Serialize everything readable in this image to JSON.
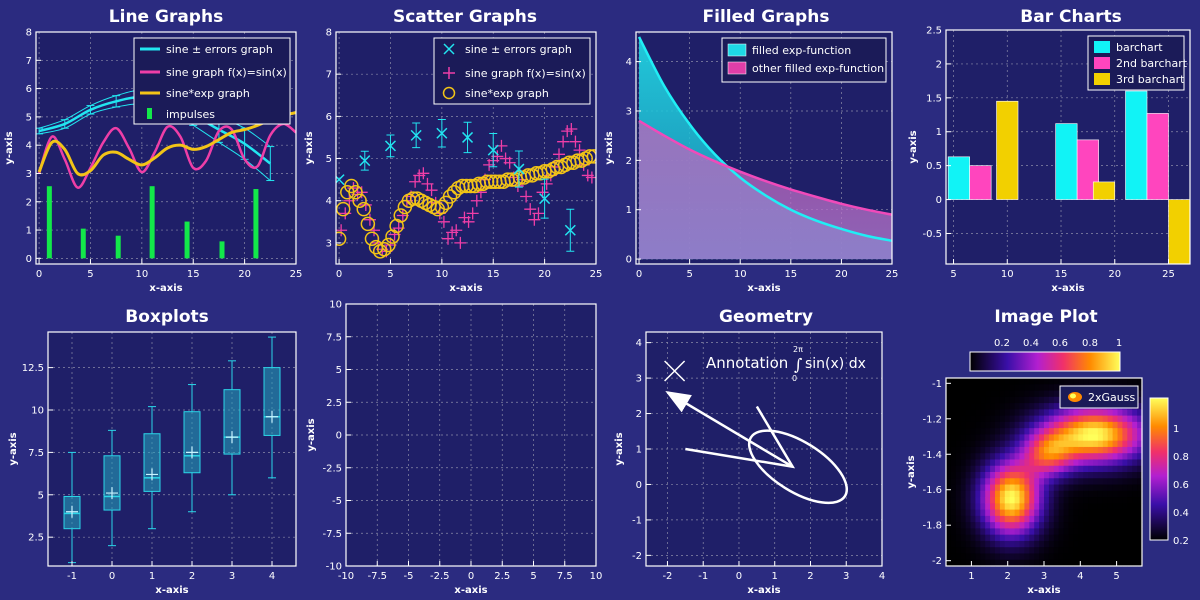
{
  "chart_data": [
    {
      "id": "line",
      "type": "line",
      "title": "Line Graphs",
      "xlabel": "x-axis",
      "ylabel": "y-axis",
      "xlim": [
        -0.3,
        25
      ],
      "ylim": [
        -0.2,
        8
      ],
      "xticks": [
        0,
        5,
        10,
        15,
        20,
        25
      ],
      "yticks": [
        0,
        1,
        2,
        3,
        4,
        5,
        6,
        7,
        8
      ],
      "grid": true,
      "legend_position": "top-right",
      "colors": {
        "errors": "#22e5f0",
        "sine": "#ee3ea7",
        "sineexp": "#f2c417",
        "impulses": "#13e84a"
      },
      "legend": [
        "sine ± errors graph",
        "sine graph f(x)=sin(x)",
        "sine*exp graph",
        "impulses"
      ],
      "series": [
        {
          "name": "sine ± errors graph",
          "x": [
            0,
            2.5,
            5,
            7.5,
            10,
            12.5,
            15,
            17.5,
            20,
            22.5
          ],
          "y": [
            4.5,
            4.75,
            5.25,
            5.55,
            5.7,
            5.5,
            5.05,
            4.55,
            4.05,
            3.35
          ],
          "err": [
            0.1,
            0.15,
            0.15,
            0.2,
            0.25,
            0.3,
            0.35,
            0.45,
            0.55,
            0.6
          ]
        },
        {
          "name": "sine graph f(x)=sin(x)",
          "x": [
            0,
            1.25,
            2.5,
            3.75,
            5,
            6.25,
            7.5,
            8.75,
            10,
            11.25,
            12.5,
            13.75,
            15,
            16.25,
            17.5,
            18.75,
            20,
            21.25,
            22.5,
            23.75,
            25
          ],
          "y": [
            3,
            4.3,
            3.5,
            2.5,
            3.2,
            4.1,
            4.6,
            3.9,
            3.05,
            3.75,
            4.65,
            4.3,
            3.2,
            3.45,
            4.5,
            4.55,
            3.5,
            3.25,
            4.35,
            4.75,
            4.45
          ]
        },
        {
          "name": "sine*exp graph",
          "x": [
            0,
            1.25,
            2.5,
            3.75,
            5,
            6.25,
            7.5,
            8.75,
            10,
            11.25,
            12.5,
            13.75,
            15,
            16.25,
            17.5,
            18.75,
            20,
            21.25,
            22.5,
            23.75,
            25
          ],
          "y": [
            3.05,
            4.1,
            3.85,
            3.0,
            3.1,
            3.65,
            3.75,
            3.5,
            3.3,
            3.55,
            3.9,
            4.0,
            3.85,
            3.95,
            4.2,
            4.45,
            4.55,
            4.7,
            4.9,
            5.05,
            5.15
          ]
        },
        {
          "name": "impulses",
          "x": [
            1,
            4.3,
            7.7,
            11,
            14.4,
            17.8,
            21.1
          ],
          "y": [
            2.55,
            1.05,
            0.8,
            2.55,
            1.3,
            0.6,
            2.45
          ]
        }
      ]
    },
    {
      "id": "scatter",
      "type": "scatter",
      "title": "Scatter Graphs",
      "xlabel": "x-axis",
      "ylabel": "y-axis",
      "xlim": [
        -0.3,
        25
      ],
      "ylim": [
        2.5,
        8
      ],
      "xticks": [
        0,
        5,
        10,
        15,
        20,
        25
      ],
      "yticks": [
        3,
        4,
        5,
        6,
        7,
        8
      ],
      "grid": true,
      "legend_position": "top-right",
      "legend": [
        "sine ± errors graph",
        "sine graph f(x)=sin(x)",
        "sine*exp graph"
      ],
      "series": [
        {
          "name": "sine ± errors graph",
          "marker": "x",
          "x": [
            0,
            2.5,
            5,
            7.5,
            10,
            12.5,
            15,
            17.5,
            20,
            22.5
          ],
          "y": [
            4.5,
            4.95,
            5.3,
            5.55,
            5.6,
            5.5,
            5.2,
            4.75,
            4.05,
            3.3
          ]
        },
        {
          "name": "sine graph f(x)=sin(x)",
          "marker": "+",
          "x": [
            0.2,
            0.6,
            1.0,
            1.4,
            1.8,
            2.2,
            2.6,
            3.0,
            3.4,
            3.8,
            4.2,
            4.6,
            5.0,
            5.4,
            5.8,
            6.2,
            6.6,
            7.0,
            7.4,
            7.8,
            8.2,
            8.6,
            9.0,
            9.4,
            9.8,
            10.2,
            10.6,
            11.0,
            11.4,
            11.8,
            12.2,
            12.6,
            13.0,
            13.4,
            13.8,
            14.2,
            14.6,
            15.0,
            15.4,
            15.8,
            16.2,
            16.6,
            17.0,
            17.4,
            17.8,
            18.2,
            18.6,
            19.0,
            19.4,
            19.8,
            20.2,
            20.6,
            21.0,
            21.4,
            21.8,
            22.2,
            22.6,
            23.0,
            23.4,
            23.8,
            24.2,
            24.6
          ],
          "y": [
            3.3,
            3.7,
            4.0,
            4.3,
            4.15,
            4.2,
            3.9,
            3.55,
            3.3,
            3.0,
            2.85,
            2.8,
            2.95,
            3.2,
            3.35,
            3.65,
            4.0,
            4.1,
            4.45,
            4.6,
            4.65,
            4.4,
            4.25,
            3.95,
            3.7,
            3.5,
            3.1,
            3.25,
            3.3,
            3.0,
            3.6,
            3.5,
            3.7,
            4.0,
            4.2,
            4.5,
            4.85,
            4.95,
            5.05,
            5.3,
            5.0,
            4.9,
            4.55,
            4.35,
            4.5,
            4.1,
            3.8,
            3.55,
            3.7,
            4.2,
            4.4,
            4.6,
            4.8,
            5.1,
            5.4,
            5.65,
            5.7,
            5.4,
            5.2,
            4.85,
            4.6,
            4.55
          ]
        },
        {
          "name": "sine*exp graph",
          "marker": "o",
          "x": [
            0,
            0.4,
            0.8,
            1.2,
            1.6,
            2.0,
            2.4,
            2.8,
            3.2,
            3.6,
            4.0,
            4.4,
            4.8,
            5.2,
            5.6,
            6.0,
            6.4,
            6.8,
            7.2,
            7.6,
            8.0,
            8.4,
            8.8,
            9.2,
            9.6,
            10.0,
            10.4,
            10.8,
            11.2,
            11.6,
            12.0,
            12.4,
            12.8,
            13.2,
            13.6,
            14.0,
            14.4,
            14.8,
            15.2,
            15.6,
            16.0,
            16.4,
            16.8,
            17.2,
            17.6,
            18.0,
            18.4,
            18.8,
            19.2,
            19.6,
            20.0,
            20.4,
            20.8,
            21.2,
            21.6,
            22.0,
            22.4,
            22.8,
            23.2,
            23.6,
            24.0,
            24.4,
            24.8
          ],
          "y": [
            3.1,
            3.8,
            4.2,
            4.35,
            4.2,
            4.0,
            3.8,
            3.45,
            3.1,
            2.9,
            2.8,
            2.85,
            2.95,
            3.15,
            3.4,
            3.65,
            3.85,
            4.0,
            4.05,
            4.05,
            4.0,
            3.95,
            3.9,
            3.85,
            3.8,
            3.85,
            3.95,
            4.1,
            4.2,
            4.3,
            4.35,
            4.35,
            4.35,
            4.35,
            4.4,
            4.4,
            4.45,
            4.45,
            4.45,
            4.45,
            4.45,
            4.5,
            4.5,
            4.5,
            4.55,
            4.55,
            4.6,
            4.6,
            4.65,
            4.65,
            4.7,
            4.7,
            4.75,
            4.8,
            4.8,
            4.85,
            4.9,
            4.9,
            4.95,
            4.95,
            5.0,
            5.05,
            5.05
          ]
        }
      ]
    },
    {
      "id": "filled",
      "type": "area",
      "title": "Filled Graphs",
      "xlabel": "x-axis",
      "ylabel": "y-axis",
      "xlim": [
        -0.3,
        25
      ],
      "ylim": [
        -0.1,
        4.6
      ],
      "xticks": [
        0,
        5,
        10,
        15,
        20,
        25
      ],
      "yticks": [
        0,
        1,
        2,
        3,
        4
      ],
      "grid": true,
      "legend_position": "top-right",
      "legend": [
        "filled exp-function",
        "other filled exp-function"
      ],
      "series": [
        {
          "name": "filled exp-function",
          "color": "#1ed8e6",
          "x": [
            0,
            2.5,
            5,
            7.5,
            10,
            12.5,
            15,
            17.5,
            20,
            22.5,
            25
          ],
          "y": [
            4.5,
            3.5,
            2.73,
            2.12,
            1.65,
            1.29,
            1.0,
            0.78,
            0.61,
            0.47,
            0.37
          ]
        },
        {
          "name": "other filled exp-function",
          "color": "#e03ea8",
          "x": [
            0,
            2.5,
            5,
            7.5,
            10,
            12.5,
            15,
            17.5,
            20,
            22.5,
            25
          ],
          "y": [
            2.8,
            2.5,
            2.22,
            1.98,
            1.77,
            1.58,
            1.41,
            1.26,
            1.12,
            1.0,
            0.9
          ]
        }
      ]
    },
    {
      "id": "bar",
      "type": "bar",
      "title": "Bar Charts",
      "xlabel": "x-axis",
      "ylabel": "y-axis",
      "xlim": [
        4.3,
        27
      ],
      "ylim": [
        -0.95,
        2.5
      ],
      "xticks": [
        5,
        10,
        15,
        20,
        25
      ],
      "yticks": [
        -0.5,
        0,
        0.5,
        1,
        1.5,
        2,
        2.5
      ],
      "grid": true,
      "legend_position": "top-right",
      "legend": [
        "barchart",
        "2nd barchart",
        "3rd barchart"
      ],
      "series": [
        {
          "name": "barchart",
          "color": "#11f3f6",
          "x": [
            5.5,
            15.5,
            22
          ],
          "values": [
            0.63,
            1.12,
            1.6
          ]
        },
        {
          "name": "2nd barchart",
          "color": "#ff45be",
          "x": [
            7.5,
            17.5,
            24
          ],
          "values": [
            0.5,
            0.88,
            1.27
          ]
        },
        {
          "name": "3rd barchart",
          "color": "#f2d000",
          "x": [
            10,
            19,
            26
          ],
          "values": [
            1.45,
            0.26,
            -0.95
          ]
        }
      ]
    },
    {
      "id": "box",
      "type": "boxplot",
      "title": "Boxplots",
      "xlabel": "x-axis",
      "ylabel": "y-axis",
      "xlim": [
        -1.6,
        4.6
      ],
      "ylim": [
        0.8,
        14.6
      ],
      "xticks": [
        -1,
        0,
        1,
        2,
        3,
        4
      ],
      "yticks": [
        2.5,
        5,
        7.5,
        10,
        12.5
      ],
      "grid": true,
      "boxes": [
        {
          "x": -1,
          "min": 1.0,
          "q1": 3.0,
          "median": 3.9,
          "mean": 4.0,
          "q3": 4.9,
          "max": 7.5
        },
        {
          "x": 0,
          "min": 2.0,
          "q1": 4.1,
          "median": 4.9,
          "mean": 5.1,
          "q3": 7.3,
          "max": 8.8
        },
        {
          "x": 1,
          "min": 3.0,
          "q1": 5.2,
          "median": 6.0,
          "mean": 6.2,
          "q3": 8.6,
          "max": 10.2
        },
        {
          "x": 2,
          "min": 4.0,
          "q1": 6.3,
          "median": 7.3,
          "mean": 7.5,
          "q3": 9.9,
          "max": 11.5
        },
        {
          "x": 3,
          "min": 5.0,
          "q1": 7.4,
          "median": 8.4,
          "mean": 8.4,
          "q3": 11.2,
          "max": 12.9
        },
        {
          "x": 4,
          "min": 6.0,
          "q1": 8.5,
          "median": 9.6,
          "mean": 9.6,
          "q3": 12.5,
          "max": 14.3
        }
      ]
    },
    {
      "id": "empty",
      "type": "scatter",
      "title": "",
      "xlabel": "x-axis",
      "ylabel": "y-axis",
      "xlim": [
        -10,
        10
      ],
      "ylim": [
        -10,
        10
      ],
      "xticks": [
        -10,
        -7.5,
        -5,
        -2.5,
        0,
        2.5,
        5,
        7.5,
        10
      ],
      "yticks": [
        -10,
        -7.5,
        -5,
        -2.5,
        0,
        2.5,
        5,
        7.5,
        10
      ],
      "grid": true
    },
    {
      "id": "geometry",
      "type": "other",
      "title": "Geometry",
      "xlabel": "x-axis",
      "ylabel": "y-axis",
      "xlim": [
        -2.6,
        4
      ],
      "ylim": [
        -2.3,
        4.3
      ],
      "xticks": [
        -2,
        -1,
        0,
        1,
        2,
        3,
        4
      ],
      "yticks": [
        -2,
        -1,
        0,
        1,
        2,
        3,
        4
      ],
      "grid": true,
      "annotation_parts": [
        "Annotation",
        "2π",
        "0",
        "sin(x) dx"
      ],
      "shapes": {
        "cross": {
          "x": -1.8,
          "y": 3.2
        },
        "arrow": {
          "from": [
            1.5,
            0.5
          ],
          "to": [
            -2.0,
            2.6
          ]
        },
        "polyline": [
          [
            -1.5,
            1.0
          ],
          [
            1.5,
            0.5
          ],
          [
            0.5,
            2.2
          ]
        ],
        "ellipse": {
          "cx": 1.65,
          "cy": 0.5,
          "rx": 1.55,
          "ry": 0.7,
          "angle_deg": -32
        }
      }
    },
    {
      "id": "image",
      "type": "heatmap",
      "title": "Image Plot",
      "xlabel": "x-axis",
      "ylabel": "y-axis",
      "xlim": [
        0.3,
        5.7
      ],
      "ylim": [
        -2.03,
        -0.97
      ],
      "xticks": [
        1,
        2,
        3,
        4,
        5
      ],
      "yticks": [
        -1,
        -1.2,
        -1.4,
        -1.6,
        -1.8,
        -2
      ],
      "y_inverted": true,
      "legend": [
        "2xGauss"
      ],
      "colorbar_top_ticks": [
        "0.2",
        "0.4",
        "0.6",
        "0.8",
        "1"
      ],
      "colorbar_right_ticks": [
        "1",
        "0.8",
        "0.6",
        "0.4",
        "0.2"
      ],
      "gaussians": [
        {
          "cx": 2.1,
          "cy": -1.65,
          "sx": 0.55,
          "sy": 0.14,
          "amp": 1.0
        },
        {
          "cx": 4.4,
          "cy": -1.29,
          "sx": 0.95,
          "sy": 0.11,
          "amp": 1.0
        },
        {
          "cx": 3.1,
          "cy": -1.4,
          "sx": 0.5,
          "sy": 0.09,
          "amp": 0.55
        }
      ]
    }
  ]
}
